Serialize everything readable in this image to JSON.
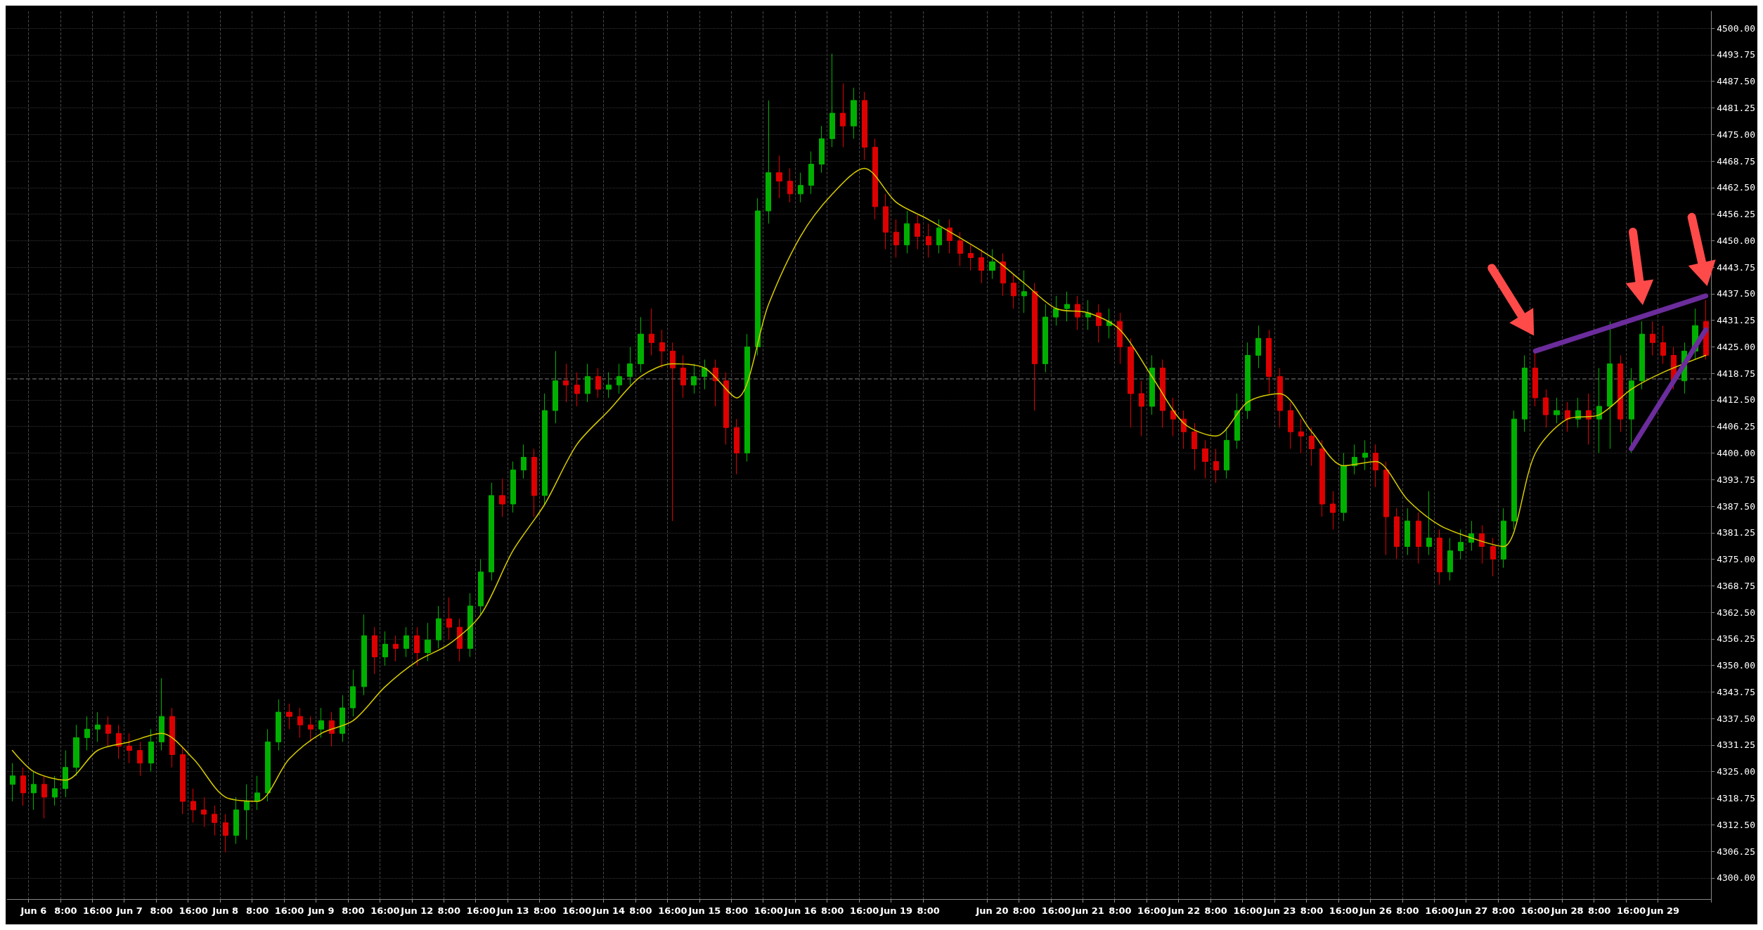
{
  "chart_data": {
    "type": "candlestick",
    "categories": [
      null,
      null,
      "Jun 6",
      null,
      null,
      "8:00",
      null,
      null,
      "16:00",
      null,
      null,
      "Jun 7",
      null,
      null,
      "8:00",
      null,
      null,
      "16:00",
      null,
      null,
      "Jun 8",
      null,
      null,
      "8:00",
      null,
      null,
      "16:00",
      null,
      null,
      "Jun 9",
      null,
      null,
      "8:00",
      null,
      null,
      "16:00",
      null,
      null,
      "Jun 12",
      null,
      null,
      "8:00",
      null,
      null,
      "16:00",
      null,
      null,
      "Jun 13",
      null,
      null,
      "8:00",
      null,
      null,
      "16:00",
      null,
      null,
      "Jun 14",
      null,
      null,
      "8:00",
      null,
      null,
      "16:00",
      null,
      null,
      "Jun 15",
      null,
      null,
      "8:00",
      null,
      null,
      "16:00",
      null,
      null,
      "Jun 16",
      null,
      null,
      "8:00",
      null,
      null,
      "16:00",
      null,
      null,
      "Jun 19",
      null,
      null,
      "8:00",
      null,
      null,
      null,
      null,
      null,
      "Jun 20",
      null,
      null,
      "8:00",
      null,
      null,
      "16:00",
      null,
      null,
      "Jun 21",
      null,
      null,
      "8:00",
      null,
      null,
      "16:00",
      null,
      null,
      "Jun 22",
      null,
      null,
      "8:00",
      null,
      null,
      "16:00",
      null,
      null,
      "Jun 23",
      null,
      null,
      "8:00",
      null,
      null,
      "16:00",
      null,
      null,
      "Jun 26",
      null,
      null,
      "8:00",
      null,
      null,
      "16:00",
      null,
      null,
      "Jun 27",
      null,
      null,
      "8:00",
      null,
      null,
      "16:00",
      null,
      null,
      "Jun 28",
      null,
      null,
      "8:00",
      null,
      null,
      "16:00",
      null,
      null,
      "Jun 29",
      null,
      null,
      null,
      null
    ],
    "ohlc": [
      [
        4322,
        4327,
        4318,
        4324
      ],
      [
        4324,
        4326,
        4317,
        4320
      ],
      [
        4320,
        4325,
        4316,
        4322
      ],
      [
        4322,
        4324,
        4314,
        4319
      ],
      [
        4319,
        4324,
        4317,
        4321
      ],
      [
        4321,
        4330,
        4319,
        4326
      ],
      [
        4326,
        4336,
        4324,
        4333
      ],
      [
        4333,
        4338,
        4330,
        4335
      ],
      [
        4335,
        4339,
        4332,
        4336
      ],
      [
        4336,
        4338,
        4331,
        4334
      ],
      [
        4334,
        4336,
        4328,
        4331
      ],
      [
        4331,
        4334,
        4327,
        4330
      ],
      [
        4330,
        4332,
        4324,
        4327
      ],
      [
        4327,
        4335,
        4325,
        4332
      ],
      [
        4332,
        4347,
        4330,
        4338
      ],
      [
        4338,
        4340,
        4326,
        4329
      ],
      [
        4329,
        4331,
        4315,
        4318
      ],
      [
        4318,
        4321,
        4313,
        4316
      ],
      [
        4316,
        4319,
        4312,
        4315
      ],
      [
        4315,
        4317,
        4310,
        4313
      ],
      [
        4313,
        4315,
        4306,
        4310
      ],
      [
        4310,
        4319,
        4308,
        4316
      ],
      [
        4316,
        4322,
        4309,
        4318
      ],
      [
        4318,
        4324,
        4316,
        4320
      ],
      [
        4320,
        4335,
        4318,
        4332
      ],
      [
        4332,
        4342,
        4330,
        4339
      ],
      [
        4339,
        4341,
        4335,
        4338
      ],
      [
        4338,
        4340,
        4333,
        4336
      ],
      [
        4336,
        4338,
        4332,
        4335
      ],
      [
        4335,
        4340,
        4333,
        4337
      ],
      [
        4337,
        4339,
        4331,
        4334
      ],
      [
        4334,
        4343,
        4332,
        4340
      ],
      [
        4340,
        4349,
        4338,
        4345
      ],
      [
        4345,
        4362,
        4343,
        4357
      ],
      [
        4357,
        4359,
        4348,
        4352
      ],
      [
        4352,
        4358,
        4350,
        4355
      ],
      [
        4355,
        4357,
        4351,
        4354
      ],
      [
        4354,
        4359,
        4352,
        4357
      ],
      [
        4357,
        4359,
        4350,
        4353
      ],
      [
        4353,
        4360,
        4351,
        4356
      ],
      [
        4356,
        4364,
        4354,
        4361
      ],
      [
        4361,
        4366,
        4356,
        4359
      ],
      [
        4359,
        4361,
        4351,
        4354
      ],
      [
        4354,
        4367,
        4352,
        4364
      ],
      [
        4364,
        4375,
        4362,
        4372
      ],
      [
        4372,
        4393,
        4370,
        4390
      ],
      [
        4390,
        4394,
        4385,
        4388
      ],
      [
        4388,
        4398,
        4386,
        4396
      ],
      [
        4396,
        4402,
        4394,
        4399
      ],
      [
        4399,
        4401,
        4385,
        4390
      ],
      [
        4390,
        4414,
        4388,
        4410
      ],
      [
        4410,
        4424,
        4407,
        4417
      ],
      [
        4417,
        4421,
        4412,
        4416
      ],
      [
        4416,
        4419,
        4411,
        4414
      ],
      [
        4414,
        4421,
        4412,
        4418
      ],
      [
        4418,
        4420,
        4413,
        4415
      ],
      [
        4415,
        4419,
        4413,
        4416
      ],
      [
        4416,
        4421,
        4414,
        4418
      ],
      [
        4418,
        4425,
        4416,
        4421
      ],
      [
        4421,
        4432,
        4419,
        4428
      ],
      [
        4428,
        4434,
        4423,
        4426
      ],
      [
        4426,
        4429,
        4420,
        4424
      ],
      [
        4424,
        4426,
        4384,
        4420
      ],
      [
        4420,
        4423,
        4413,
        4416
      ],
      [
        4416,
        4421,
        4414,
        4418
      ],
      [
        4418,
        4422,
        4415,
        4420
      ],
      [
        4420,
        4422,
        4411,
        4417
      ],
      [
        4417,
        4419,
        4402,
        4406
      ],
      [
        4406,
        4408,
        4395,
        4400
      ],
      [
        4400,
        4428,
        4398,
        4425
      ],
      [
        4425,
        4460,
        4423,
        4457
      ],
      [
        4457,
        4483,
        4454,
        4466
      ],
      [
        4466,
        4470,
        4460,
        4464
      ],
      [
        4464,
        4467,
        4459,
        4461
      ],
      [
        4461,
        4466,
        4459,
        4463
      ],
      [
        4463,
        4471,
        4461,
        4468
      ],
      [
        4468,
        4477,
        4466,
        4474
      ],
      [
        4474,
        4494,
        4472,
        4480
      ],
      [
        4480,
        4487,
        4472,
        4477
      ],
      [
        4477,
        4486,
        4474,
        4483
      ],
      [
        4483,
        4485,
        4469,
        4472
      ],
      [
        4472,
        4474,
        4455,
        4458
      ],
      [
        4458,
        4461,
        4448,
        4452
      ],
      [
        4452,
        4455,
        4446,
        4449
      ],
      [
        4449,
        4457,
        4447,
        4454
      ],
      [
        4454,
        4456,
        4448,
        4451
      ],
      [
        4451,
        4454,
        4446,
        4449
      ],
      [
        4449,
        4455,
        4447,
        4453
      ],
      [
        4453,
        4455,
        4447,
        4450
      ],
      [
        4450,
        4452,
        4444,
        4447
      ],
      [
        4447,
        4449,
        4443,
        4446
      ],
      [
        4446,
        4448,
        4440,
        4443
      ],
      [
        4443,
        4448,
        4441,
        4445
      ],
      [
        4445,
        4447,
        4437,
        4440
      ],
      [
        4440,
        4442,
        4434,
        4437
      ],
      [
        4437,
        4443,
        4433,
        4438
      ],
      [
        4438,
        4440,
        4410,
        4421
      ],
      [
        4421,
        4435,
        4419,
        4432
      ],
      [
        4432,
        4437,
        4430,
        4434
      ],
      [
        4434,
        4438,
        4431,
        4435
      ],
      [
        4435,
        4437,
        4429,
        4432
      ],
      [
        4432,
        4436,
        4429,
        4433
      ],
      [
        4433,
        4435,
        4426,
        4430
      ],
      [
        4430,
        4434,
        4427,
        4431
      ],
      [
        4431,
        4433,
        4421,
        4425
      ],
      [
        4425,
        4427,
        4406,
        4414
      ],
      [
        4414,
        4417,
        4404,
        4411
      ],
      [
        4411,
        4423,
        4409,
        4420
      ],
      [
        4420,
        4422,
        4406,
        4410
      ],
      [
        4410,
        4413,
        4404,
        4408
      ],
      [
        4408,
        4410,
        4401,
        4405
      ],
      [
        4405,
        4407,
        4396,
        4401
      ],
      [
        4401,
        4403,
        4394,
        4398
      ],
      [
        4398,
        4401,
        4393,
        4396
      ],
      [
        4396,
        4406,
        4394,
        4403
      ],
      [
        4403,
        4414,
        4401,
        4410
      ],
      [
        4410,
        4426,
        4408,
        4423
      ],
      [
        4423,
        4430,
        4420,
        4427
      ],
      [
        4427,
        4429,
        4414,
        4418
      ],
      [
        4418,
        4420,
        4406,
        4410
      ],
      [
        4410,
        4412,
        4401,
        4405
      ],
      [
        4405,
        4408,
        4400,
        4404
      ],
      [
        4404,
        4406,
        4397,
        4401
      ],
      [
        4401,
        4403,
        4385,
        4388
      ],
      [
        4388,
        4391,
        4382,
        4386
      ],
      [
        4386,
        4400,
        4384,
        4397
      ],
      [
        4397,
        4402,
        4395,
        4399
      ],
      [
        4399,
        4403,
        4396,
        4400
      ],
      [
        4400,
        4402,
        4392,
        4396
      ],
      [
        4396,
        4398,
        4376,
        4385
      ],
      [
        4385,
        4387,
        4375,
        4378
      ],
      [
        4378,
        4387,
        4376,
        4384
      ],
      [
        4384,
        4386,
        4374,
        4378
      ],
      [
        4378,
        4391,
        4376,
        4380
      ],
      [
        4380,
        4382,
        4369,
        4372
      ],
      [
        4372,
        4380,
        4370,
        4377
      ],
      [
        4377,
        4382,
        4375,
        4379
      ],
      [
        4379,
        4384,
        4377,
        4381
      ],
      [
        4381,
        4383,
        4374,
        4378
      ],
      [
        4378,
        4380,
        4371,
        4375
      ],
      [
        4375,
        4387,
        4373,
        4384
      ],
      [
        4384,
        4410,
        4382,
        4408
      ],
      [
        4408,
        4423,
        4405,
        4420
      ],
      [
        4420,
        4424,
        4411,
        4413
      ],
      [
        4413,
        4415,
        4406,
        4409
      ],
      [
        4409,
        4413,
        4407,
        4410
      ],
      [
        4410,
        4412,
        4405,
        4408
      ],
      [
        4408,
        4413,
        4406,
        4410
      ],
      [
        4410,
        4414,
        4402,
        4408
      ],
      [
        4408,
        4420,
        4400,
        4411
      ],
      [
        4411,
        4431,
        4401,
        4421
      ],
      [
        4421,
        4423,
        4405,
        4408
      ],
      [
        4408,
        4420,
        4400,
        4417
      ],
      [
        4417,
        4431,
        4415,
        4428
      ],
      [
        4428,
        4431,
        4423,
        4426
      ],
      [
        4426,
        4430,
        4421,
        4423
      ],
      [
        4423,
        4425,
        4415,
        4417
      ],
      [
        4417,
        4426,
        4414,
        4424
      ],
      [
        4424,
        4434,
        4422,
        4430
      ],
      [
        4431,
        4436,
        4422,
        4423
      ]
    ],
    "series": [
      {
        "type": "line",
        "color": "#d8cc00",
        "values": [
          4330,
          null,
          4325,
          null,
          null,
          4323,
          null,
          null,
          4330,
          null,
          null,
          4332,
          null,
          null,
          4334,
          null,
          null,
          4328,
          null,
          null,
          4319,
          null,
          null,
          4318,
          null,
          null,
          4328,
          null,
          null,
          4334,
          null,
          null,
          4337,
          null,
          null,
          4345,
          null,
          null,
          4351,
          null,
          null,
          4355,
          null,
          null,
          4362,
          null,
          null,
          4377,
          null,
          null,
          4388,
          null,
          null,
          4402,
          null,
          null,
          4410,
          null,
          null,
          4418,
          null,
          null,
          4421,
          null,
          null,
          4420,
          null,
          null,
          4413,
          null,
          null,
          4435,
          null,
          null,
          4451,
          null,
          null,
          4461,
          null,
          null,
          4467,
          null,
          null,
          4459,
          null,
          null,
          4455,
          null,
          null,
          null,
          null,
          null,
          4446,
          null,
          null,
          4440,
          null,
          null,
          4434,
          null,
          null,
          4433,
          null,
          null,
          4429,
          null,
          null,
          4418,
          null,
          null,
          4407,
          null,
          null,
          4404,
          null,
          null,
          4412,
          null,
          null,
          4414,
          null,
          null,
          4405,
          null,
          null,
          4397,
          null,
          null,
          4398,
          null,
          null,
          4389,
          null,
          null,
          4383,
          null,
          null,
          4380,
          null,
          null,
          4378,
          null,
          null,
          4400,
          null,
          null,
          4408,
          null,
          null,
          4409,
          null,
          null,
          4415,
          null,
          null,
          4419,
          null,
          null,
          null,
          4423
        ]
      },
      {
        "type": "line",
        "color": "#6b2c9c",
        "values": [
          null,
          null,
          null,
          null,
          null,
          null,
          null,
          null,
          null,
          null,
          null,
          null,
          null,
          null,
          null,
          null,
          null,
          null,
          null,
          null,
          null,
          null,
          null,
          null,
          null,
          null,
          null,
          null,
          null,
          null,
          null,
          null,
          null,
          null,
          null,
          null,
          null,
          null,
          null,
          null,
          null,
          null,
          null,
          null,
          null,
          null,
          null,
          null,
          null,
          null,
          null,
          null,
          null,
          null,
          null,
          null,
          null,
          null,
          null,
          null,
          null,
          null,
          null,
          null,
          null,
          null,
          null,
          null,
          null,
          null,
          null,
          null,
          null,
          null,
          null,
          null,
          null,
          null,
          null,
          null,
          null,
          null,
          null,
          null,
          null,
          null,
          null,
          null,
          null,
          null,
          null,
          null,
          null,
          null,
          null,
          null,
          null,
          null,
          null,
          null,
          null,
          null,
          null,
          null,
          null,
          null,
          null,
          null,
          null,
          null,
          null,
          null,
          null,
          null,
          null,
          null,
          null,
          null,
          null,
          null,
          null,
          null,
          null,
          null,
          null,
          null,
          null,
          null,
          null,
          null,
          null,
          null,
          null,
          null,
          null,
          null,
          null,
          null,
          null,
          null,
          null,
          null,
          null,
          4424,
          null,
          null,
          null,
          null,
          null,
          null,
          null,
          null,
          null,
          null,
          null,
          null,
          null,
          null,
          null,
          4437
        ]
      },
      {
        "type": "line",
        "color": "#6b2c9c",
        "values": [
          null,
          null,
          null,
          null,
          null,
          null,
          null,
          null,
          null,
          null,
          null,
          null,
          null,
          null,
          null,
          null,
          null,
          null,
          null,
          null,
          null,
          null,
          null,
          null,
          null,
          null,
          null,
          null,
          null,
          null,
          null,
          null,
          null,
          null,
          null,
          null,
          null,
          null,
          null,
          null,
          null,
          null,
          null,
          null,
          null,
          null,
          null,
          null,
          null,
          null,
          null,
          null,
          null,
          null,
          null,
          null,
          null,
          null,
          null,
          null,
          null,
          null,
          null,
          null,
          null,
          null,
          null,
          null,
          null,
          null,
          null,
          null,
          null,
          null,
          null,
          null,
          null,
          null,
          null,
          null,
          null,
          null,
          null,
          null,
          null,
          null,
          null,
          null,
          null,
          null,
          null,
          null,
          null,
          null,
          null,
          null,
          null,
          null,
          null,
          null,
          null,
          null,
          null,
          null,
          null,
          null,
          null,
          null,
          null,
          null,
          null,
          null,
          null,
          null,
          null,
          null,
          null,
          null,
          null,
          null,
          null,
          null,
          null,
          null,
          null,
          null,
          null,
          null,
          null,
          null,
          null,
          null,
          null,
          null,
          null,
          null,
          null,
          null,
          null,
          null,
          null,
          null,
          null,
          null,
          null,
          null,
          null,
          null,
          null,
          null,
          null,
          null,
          4401,
          null,
          null,
          null,
          null,
          null,
          null,
          4429
        ]
      }
    ],
    "ylim": [
      4295,
      4504
    ],
    "yticks": [
      {
        "value": 4300,
        "label": "4300.00"
      },
      {
        "value": 4306.25,
        "label": "4306.25"
      },
      {
        "value": 4312.5,
        "label": "4312.50"
      },
      {
        "value": 4318.75,
        "label": "4318.75"
      },
      {
        "value": 4325,
        "label": "4325.00"
      },
      {
        "value": 4331.25,
        "label": "4331.25"
      },
      {
        "value": 4337.5,
        "label": "4337.50"
      },
      {
        "value": 4343.75,
        "label": "4343.75"
      },
      {
        "value": 4350,
        "label": "4350.00"
      },
      {
        "value": 4356.25,
        "label": "4356.25"
      },
      {
        "value": 4362.5,
        "label": "4362.50"
      },
      {
        "value": 4368.75,
        "label": "4368.75"
      },
      {
        "value": 4375,
        "label": "4375.00"
      },
      {
        "value": 4381.25,
        "label": "4381.25"
      },
      {
        "value": 4387.5,
        "label": "4387.50"
      },
      {
        "value": 4393.75,
        "label": "4393.75"
      },
      {
        "value": 4400,
        "label": "4400.00"
      },
      {
        "value": 4406.25,
        "label": "4406.25"
      },
      {
        "value": 4412.5,
        "label": "4412.50"
      },
      {
        "value": 4418.75,
        "label": "4418.75"
      },
      {
        "value": 4425,
        "label": "4425.00"
      },
      {
        "value": 4431.25,
        "label": "4431.25"
      },
      {
        "value": 4437.5,
        "label": "4437.50"
      },
      {
        "value": 4443.75,
        "label": "4443.75"
      },
      {
        "value": 4450,
        "label": "4450.00"
      },
      {
        "value": 4456.25,
        "label": "4456.25"
      },
      {
        "value": 4462.5,
        "label": "4462.50"
      },
      {
        "value": 4468.75,
        "label": "4468.75"
      },
      {
        "value": 4475,
        "label": "4475.00"
      },
      {
        "value": 4481.25,
        "label": "4481.25"
      },
      {
        "value": 4487.5,
        "label": "4487.50"
      },
      {
        "value": 4493.75,
        "label": "4493.75"
      },
      {
        "value": 4500,
        "label": "4500.00"
      }
    ],
    "ref_lines": [
      {
        "axis": "y",
        "value": 4417.5,
        "color": "#555555",
        "line_style": "dashed"
      }
    ],
    "grid": true,
    "marker": "none",
    "line_style": "solid"
  }
}
